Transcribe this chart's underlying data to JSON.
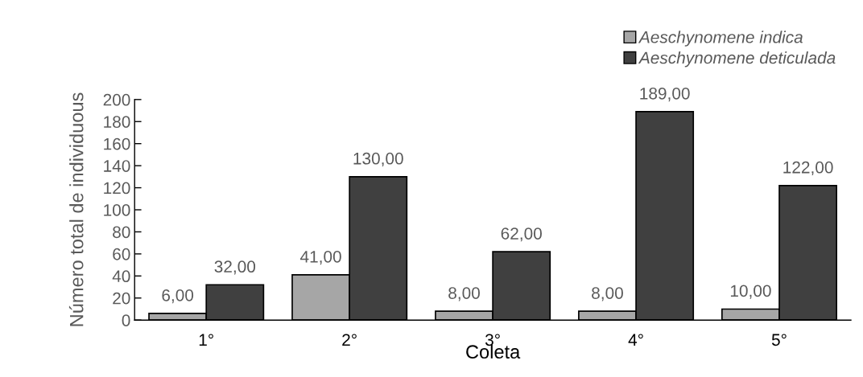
{
  "chart_data": {
    "type": "bar",
    "xlabel": "Coleta",
    "ylabel": "Número total de individuous",
    "categories": [
      "1°",
      "2°",
      "3°",
      "4°",
      "5°"
    ],
    "series": [
      {
        "name": "Aeschynomene indica",
        "color": "#a6a6a6",
        "values": [
          6,
          41,
          8,
          8,
          10
        ],
        "value_labels": [
          "6,00",
          "41,00",
          "8,00",
          "8,00",
          "10,00"
        ]
      },
      {
        "name": "Aeschynomene deticulada",
        "color": "#404040",
        "values": [
          32,
          130,
          62,
          189,
          122
        ],
        "value_labels": [
          "32,00",
          "130,00",
          "62,00",
          "189,00",
          "122,00"
        ]
      }
    ],
    "ylim": [
      0,
      200
    ],
    "yticks": [
      0,
      20,
      40,
      60,
      80,
      100,
      120,
      140,
      160,
      180,
      200
    ],
    "grid": false,
    "legend": "top right"
  }
}
